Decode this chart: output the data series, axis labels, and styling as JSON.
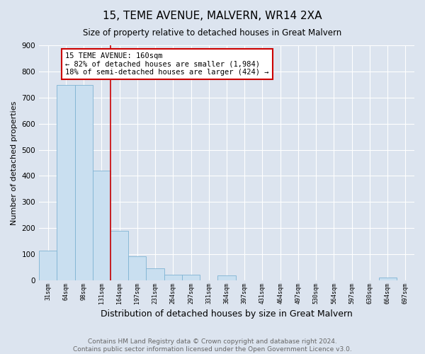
{
  "title": "15, TEME AVENUE, MALVERN, WR14 2XA",
  "subtitle": "Size of property relative to detached houses in Great Malvern",
  "xlabel": "Distribution of detached houses by size in Great Malvern",
  "ylabel": "Number of detached properties",
  "bin_labels": [
    "31sqm",
    "64sqm",
    "98sqm",
    "131sqm",
    "164sqm",
    "197sqm",
    "231sqm",
    "264sqm",
    "297sqm",
    "331sqm",
    "364sqm",
    "397sqm",
    "431sqm",
    "464sqm",
    "497sqm",
    "530sqm",
    "564sqm",
    "597sqm",
    "630sqm",
    "664sqm",
    "697sqm"
  ],
  "bar_values": [
    113,
    748,
    748,
    420,
    190,
    93,
    46,
    22,
    21,
    0,
    18,
    0,
    0,
    0,
    0,
    0,
    0,
    0,
    0,
    11,
    0
  ],
  "bar_color": "#c9dff0",
  "bar_edge_color": "#7fb3d3",
  "property_line_color": "#cc0000",
  "annotation_text": "15 TEME AVENUE: 160sqm\n← 82% of detached houses are smaller (1,984)\n18% of semi-detached houses are larger (424) →",
  "annotation_box_color": "#cc0000",
  "ylim": [
    0,
    900
  ],
  "yticks": [
    0,
    100,
    200,
    300,
    400,
    500,
    600,
    700,
    800,
    900
  ],
  "background_color": "#dce4ef",
  "plot_bg_color": "#dce4ef",
  "footer_text": "Contains HM Land Registry data © Crown copyright and database right 2024.\nContains public sector information licensed under the Open Government Licence v3.0.",
  "title_fontsize": 11,
  "subtitle_fontsize": 8.5,
  "xlabel_fontsize": 9,
  "ylabel_fontsize": 8,
  "annotation_fontsize": 7.5,
  "footer_fontsize": 6.5
}
